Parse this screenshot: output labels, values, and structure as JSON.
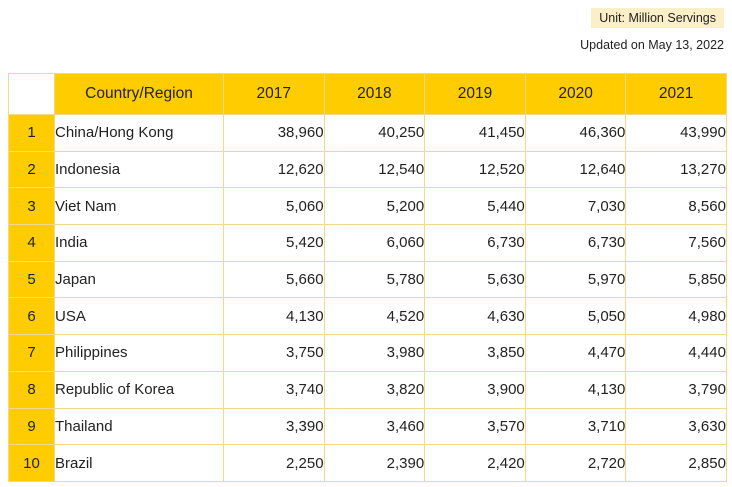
{
  "unit_label": "Unit: Million Servings",
  "updated_text": "Updated on May 13, 2022",
  "table": {
    "headers": [
      "Country/Region",
      "2017",
      "2018",
      "2019",
      "2020",
      "2021"
    ],
    "rows": [
      {
        "rank": "1",
        "country": "China/Hong Kong",
        "values": [
          "38,960",
          "40,250",
          "41,450",
          "46,360",
          "43,990"
        ]
      },
      {
        "rank": "2",
        "country": "Indonesia",
        "values": [
          "12,620",
          "12,540",
          "12,520",
          "12,640",
          "13,270"
        ]
      },
      {
        "rank": "3",
        "country": "Viet Nam",
        "values": [
          "5,060",
          "5,200",
          "5,440",
          "7,030",
          "8,560"
        ]
      },
      {
        "rank": "4",
        "country": "India",
        "values": [
          "5,420",
          "6,060",
          "6,730",
          "6,730",
          "7,560"
        ]
      },
      {
        "rank": "5",
        "country": "Japan",
        "values": [
          "5,660",
          "5,780",
          "5,630",
          "5,970",
          "5,850"
        ]
      },
      {
        "rank": "6",
        "country": "USA",
        "values": [
          "4,130",
          "4,520",
          "4,630",
          "5,050",
          "4,980"
        ]
      },
      {
        "rank": "7",
        "country": "Philippines",
        "values": [
          "3,750",
          "3,980",
          "3,850",
          "4,470",
          "4,440"
        ]
      },
      {
        "rank": "8",
        "country": "Republic of Korea",
        "values": [
          "3,740",
          "3,820",
          "3,900",
          "4,130",
          "3,790"
        ]
      },
      {
        "rank": "9",
        "country": "Thailand",
        "values": [
          "3,390",
          "3,460",
          "3,570",
          "3,710",
          "3,630"
        ]
      },
      {
        "rank": "10",
        "country": "Brazil",
        "values": [
          "2,250",
          "2,390",
          "2,420",
          "2,720",
          "2,850"
        ]
      }
    ]
  },
  "colors": {
    "header_bg": "#ffcc00",
    "badge_bg": "#fbefc7",
    "border": "#f2d88a"
  }
}
